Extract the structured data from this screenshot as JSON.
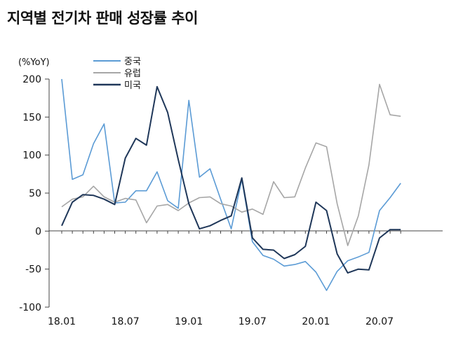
{
  "title": "지역별 전기차 판매 성장률 추이",
  "chart_data": {
    "type": "line",
    "unit_label": "(%YoY)",
    "ylim": [
      -100,
      200
    ],
    "yticks": [
      200,
      150,
      100,
      50,
      0,
      -50,
      -100
    ],
    "xtick_labels": [
      {
        "index": 0,
        "label": "18.01"
      },
      {
        "index": 6,
        "label": "18.07"
      },
      {
        "index": 12,
        "label": "19.01"
      },
      {
        "index": 18,
        "label": "19.07"
      },
      {
        "index": 24,
        "label": "20.01"
      },
      {
        "index": 30,
        "label": "20.07"
      }
    ],
    "x": [
      "18.01",
      "18.02",
      "18.03",
      "18.04",
      "18.05",
      "18.06",
      "18.07",
      "18.08",
      "18.09",
      "18.10",
      "18.11",
      "18.12",
      "19.01",
      "19.02",
      "19.03",
      "19.04",
      "19.05",
      "19.06",
      "19.07",
      "19.08",
      "19.09",
      "19.10",
      "19.11",
      "19.12",
      "20.01",
      "20.02",
      "20.03",
      "20.04",
      "20.05",
      "20.06",
      "20.07",
      "20.08",
      "20.09"
    ],
    "series": [
      {
        "name": "중국",
        "color": "#5b9bd5",
        "width": 1.6,
        "values": [
          200,
          68,
          74,
          115,
          141,
          37,
          38,
          53,
          53,
          78,
          40,
          30,
          172,
          71,
          82,
          42,
          3,
          68,
          -14,
          -32,
          -37,
          -46,
          -44,
          -40,
          -54,
          -78,
          -53,
          -39,
          -34,
          -28,
          27,
          44,
          63
        ]
      },
      {
        "name": "유럽",
        "color": "#a6a6a6",
        "width": 1.6,
        "values": [
          32,
          42,
          45,
          59,
          45,
          38,
          43,
          41,
          11,
          33,
          35,
          27,
          37,
          44,
          45,
          36,
          33,
          25,
          29,
          22,
          65,
          44,
          45,
          83,
          116,
          111,
          36,
          -19,
          20,
          87,
          193,
          153,
          151
        ]
      },
      {
        "name": "미국",
        "color": "#1f3759",
        "width": 2.0,
        "values": [
          7,
          38,
          48,
          47,
          42,
          35,
          96,
          122,
          113,
          190,
          156,
          94,
          36,
          3,
          7,
          14,
          20,
          70,
          -9,
          -24,
          -25,
          -36,
          -31,
          -20,
          38,
          27,
          -30,
          -55,
          -50,
          -51,
          -9,
          2,
          2
        ]
      }
    ]
  }
}
